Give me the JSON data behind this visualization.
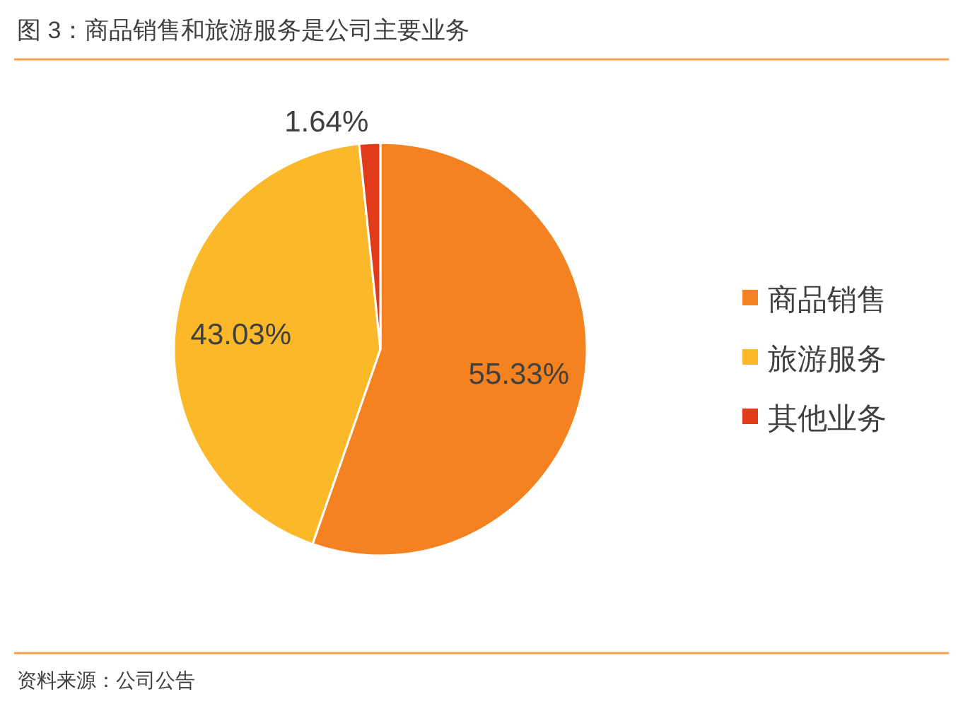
{
  "chart_data": {
    "type": "pie",
    "title": "图 3：商品销售和旅游服务是公司主要业务",
    "categories": [
      "商品销售",
      "旅游服务",
      "其他业务"
    ],
    "values": [
      55.33,
      43.03,
      1.64
    ],
    "colors": [
      "#f58220",
      "#fbb829",
      "#e03c1c"
    ],
    "value_labels": [
      "55.33%",
      "43.03%",
      "1.64%"
    ],
    "legend": "right",
    "annotations": [
      "资料来源：公司公告"
    ]
  }
}
